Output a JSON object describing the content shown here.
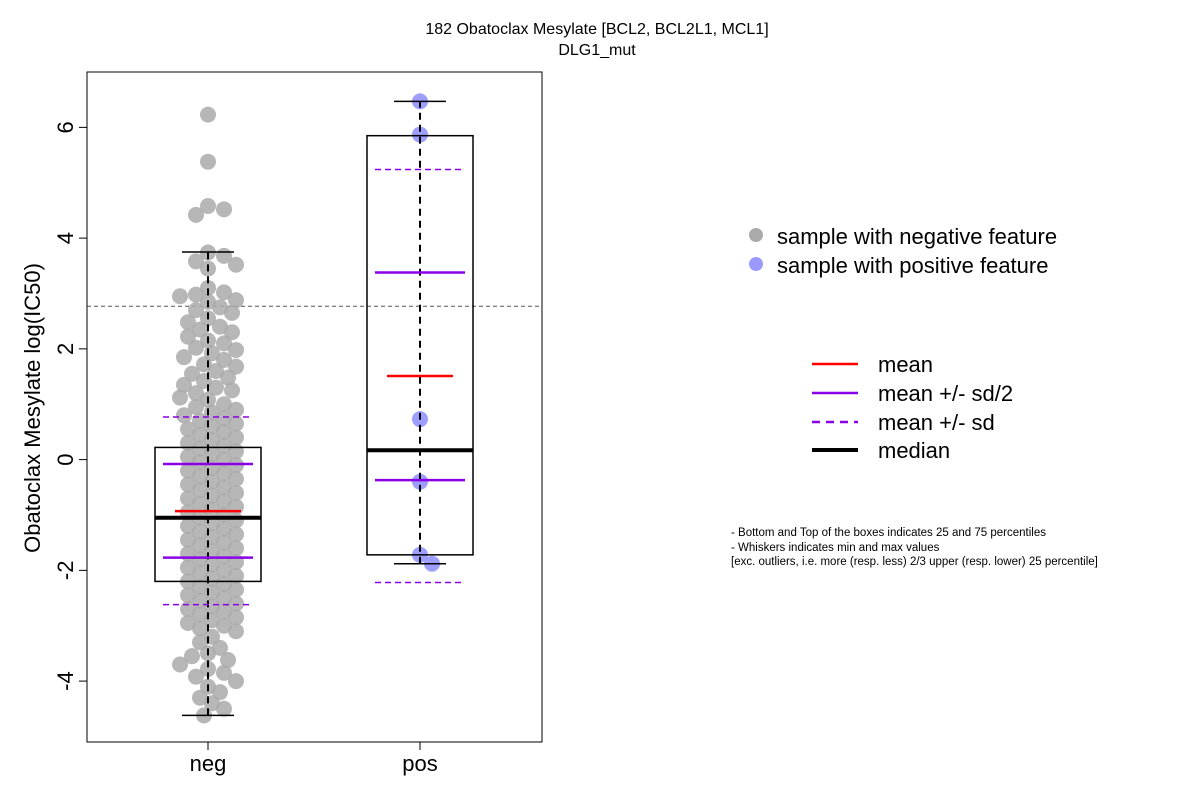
{
  "chart_data": {
    "type": "boxplot-beeswarm",
    "title": "182 Obatoclax Mesylate [BCL2, BCL2L1, MCL1]",
    "subtitle": "DLG1_mut",
    "ylabel": "Obatoclax Mesylate log(IC50)",
    "xlabel": "",
    "categories": [
      "neg",
      "pos"
    ],
    "ylim": [
      -5.1,
      7.0
    ],
    "yticks": [
      -4,
      -2,
      0,
      2,
      4,
      6
    ],
    "reference_line": 2.77,
    "groups": [
      {
        "name": "neg",
        "color": "#aaaaaa",
        "whisker_low": -4.62,
        "q1": -2.2,
        "median": -1.05,
        "q3": 0.22,
        "whisker_high": 3.75,
        "mean": -0.93,
        "mean_minus_half_sd": -1.77,
        "mean_plus_half_sd": -0.08,
        "mean_minus_sd": -2.62,
        "mean_plus_sd": 0.77,
        "points": [
          6.23,
          5.38,
          4.58,
          4.42,
          4.52,
          3.74,
          3.68,
          3.58,
          3.52,
          3.45,
          3.1,
          3.02,
          2.98,
          2.95,
          2.88,
          2.85,
          2.75,
          2.7,
          2.65,
          2.55,
          2.48,
          2.4,
          2.35,
          2.3,
          2.22,
          2.15,
          2.1,
          2.02,
          1.98,
          1.92,
          1.85,
          1.8,
          1.72,
          1.68,
          1.6,
          1.55,
          1.48,
          1.42,
          1.35,
          1.3,
          1.25,
          1.2,
          1.12,
          1.08,
          1.0,
          0.95,
          0.9,
          0.85,
          0.8,
          0.75,
          0.7,
          0.65,
          0.6,
          0.55,
          0.5,
          0.45,
          0.4,
          0.35,
          0.3,
          0.25,
          0.2,
          0.15,
          0.1,
          0.05,
          0.0,
          -0.05,
          -0.1,
          -0.15,
          -0.2,
          -0.25,
          -0.3,
          -0.35,
          -0.4,
          -0.45,
          -0.5,
          -0.55,
          -0.6,
          -0.65,
          -0.7,
          -0.75,
          -0.8,
          -0.85,
          -0.9,
          -0.95,
          -1.0,
          -1.05,
          -1.1,
          -1.15,
          -1.2,
          -1.25,
          -1.3,
          -1.35,
          -1.4,
          -1.45,
          -1.5,
          -1.55,
          -1.6,
          -1.65,
          -1.7,
          -1.75,
          -1.8,
          -1.85,
          -1.9,
          -1.95,
          -2.0,
          -2.05,
          -2.1,
          -2.15,
          -2.2,
          -2.25,
          -2.3,
          -2.35,
          -2.4,
          -2.45,
          -2.5,
          -2.55,
          -2.6,
          -2.65,
          -2.7,
          -2.75,
          -2.8,
          -2.85,
          -2.9,
          -2.95,
          -3.0,
          -3.05,
          -3.1,
          -3.2,
          -3.3,
          -3.4,
          -3.5,
          -3.55,
          -3.62,
          -3.7,
          -3.78,
          -3.85,
          -3.92,
          -4.0,
          -4.1,
          -4.2,
          -4.3,
          -4.4,
          -4.5,
          -4.62
        ]
      },
      {
        "name": "pos",
        "color": "#9999ff",
        "whisker_low": -1.88,
        "q1": -1.72,
        "median": 0.17,
        "q3": 5.85,
        "whisker_high": 6.47,
        "mean": 1.51,
        "mean_minus_half_sd": -0.37,
        "mean_plus_half_sd": 3.38,
        "mean_minus_sd": -2.22,
        "mean_plus_sd": 5.24,
        "points": [
          6.47,
          5.87,
          0.73,
          -0.4,
          -1.72,
          -1.88
        ]
      }
    ],
    "legend_points": [
      {
        "label": "sample with negative feature",
        "color": "#aaaaaa"
      },
      {
        "label": "sample with positive feature",
        "color": "#9999ff"
      }
    ],
    "legend_lines": [
      {
        "label": "mean",
        "color": "#ff0000",
        "style": "solid"
      },
      {
        "label": "mean +/- sd/2",
        "color": "#8a00e6",
        "style": "solid"
      },
      {
        "label": "mean +/- sd",
        "color": "#8a00e6",
        "style": "dashed"
      },
      {
        "label": "median",
        "color": "#000000",
        "style": "thick"
      }
    ],
    "notes": [
      "- Bottom and Top of the boxes indicates 25 and 75 percentiles",
      "- Whiskers indicates min and max values",
      "[exc. outliers, i.e. more (resp. less) 2/3 upper (resp. lower) 25 percentile]"
    ]
  }
}
